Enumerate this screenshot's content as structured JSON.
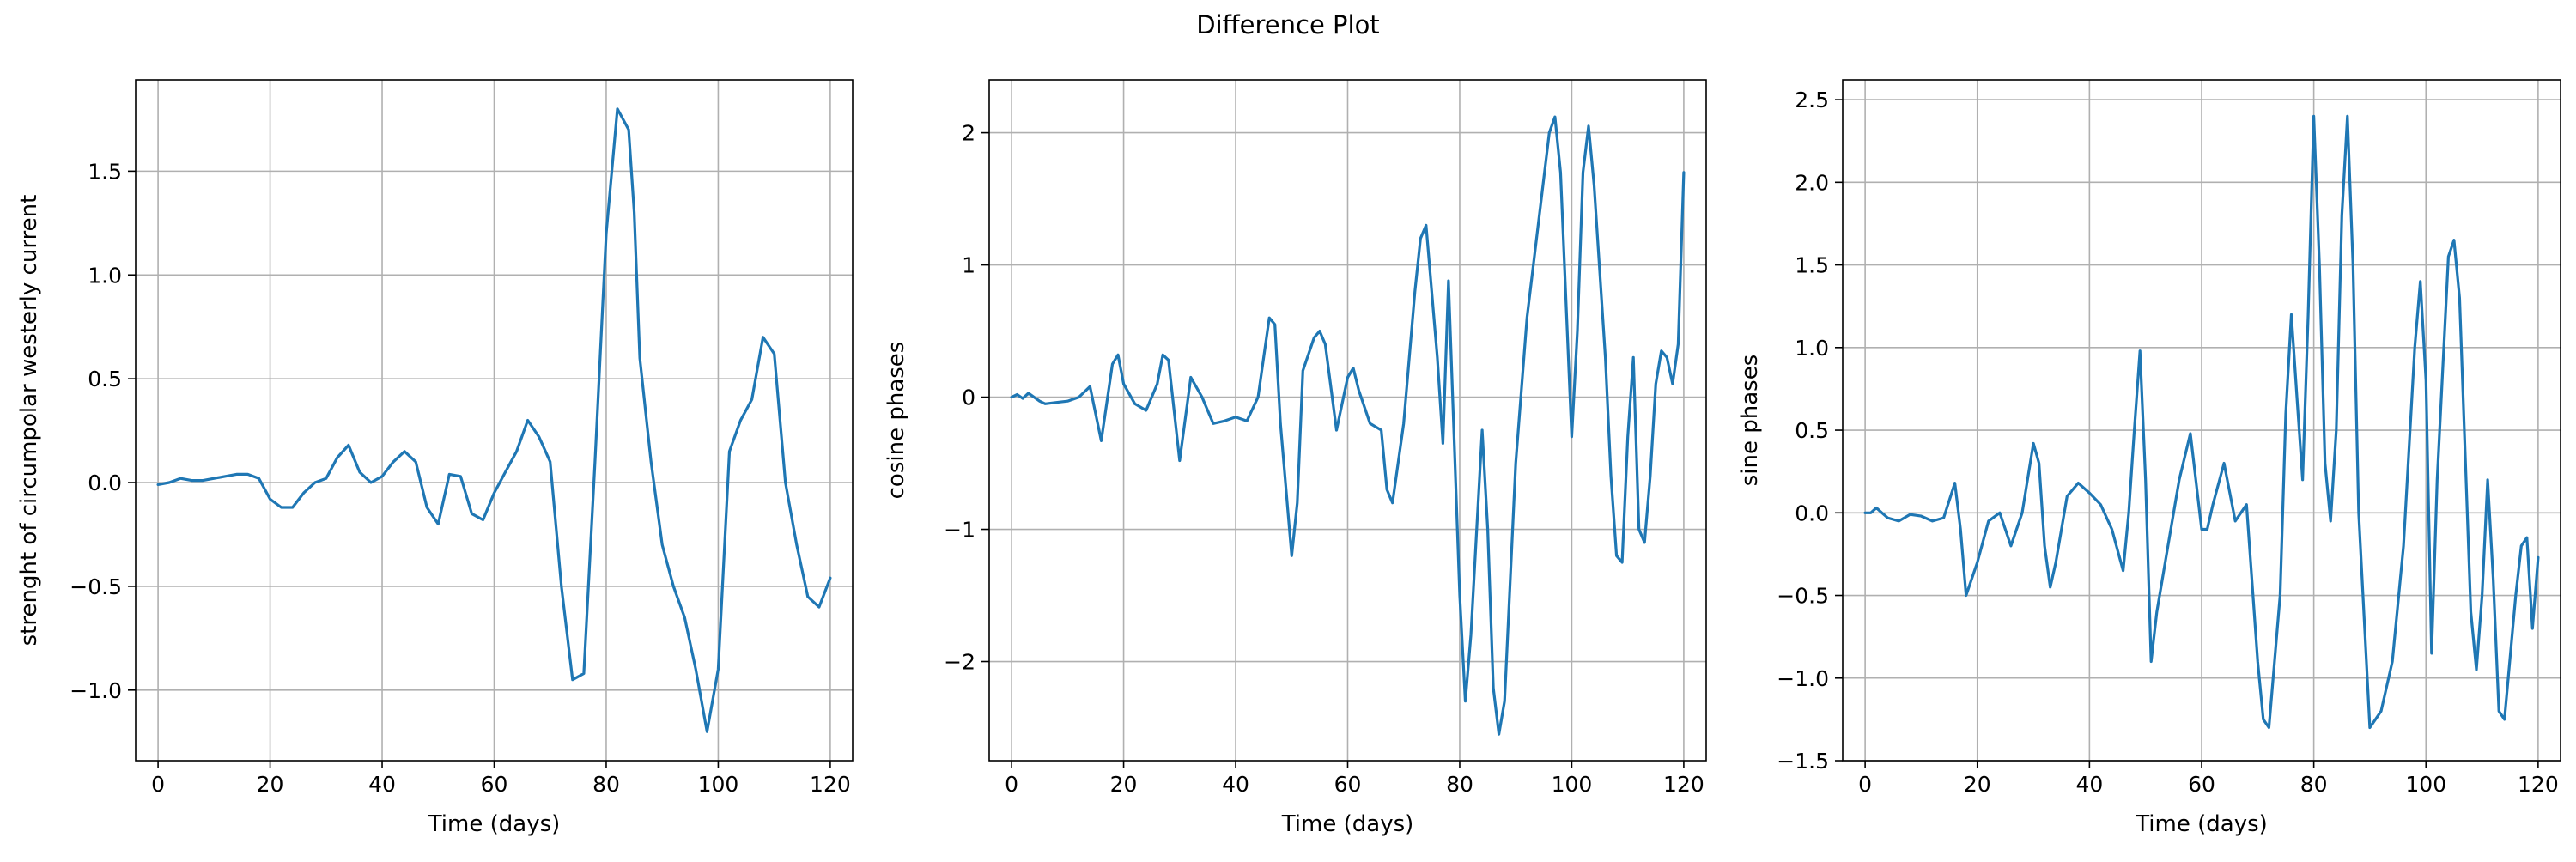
{
  "figure": {
    "title": "Difference Plot"
  },
  "chart_data": [
    {
      "type": "line",
      "title": "",
      "xlabel": "Time (days)",
      "ylabel": "strenght of circumpolar westerly current",
      "xlim": [
        -4,
        124
      ],
      "ylim": [
        -1.34,
        1.94
      ],
      "xticks": [
        0,
        20,
        40,
        60,
        80,
        100,
        120
      ],
      "yticks": [
        -1.0,
        -0.5,
        0.0,
        0.5,
        1.0,
        1.5
      ],
      "ytick_labels": [
        "−1.0",
        "−0.5",
        "0.0",
        "0.5",
        "1.0",
        "1.5"
      ],
      "grid": true,
      "line_color": "#1f77b4",
      "x": [
        0,
        2,
        4,
        6,
        8,
        10,
        12,
        14,
        16,
        18,
        20,
        22,
        24,
        26,
        28,
        30,
        32,
        34,
        36,
        38,
        40,
        42,
        44,
        46,
        48,
        50,
        52,
        54,
        56,
        58,
        60,
        62,
        64,
        66,
        68,
        70,
        72,
        74,
        76,
        78,
        80,
        82,
        84,
        85,
        86,
        88,
        90,
        92,
        94,
        96,
        98,
        100,
        102,
        104,
        106,
        108,
        110,
        112,
        114,
        116,
        118,
        120
      ],
      "y": [
        -0.01,
        0.0,
        0.02,
        0.01,
        0.01,
        0.02,
        0.03,
        0.04,
        0.04,
        0.02,
        -0.08,
        -0.12,
        -0.12,
        -0.05,
        0.0,
        0.02,
        0.12,
        0.18,
        0.05,
        0.0,
        0.03,
        0.1,
        0.15,
        0.1,
        -0.12,
        -0.2,
        0.04,
        0.03,
        -0.15,
        -0.18,
        -0.05,
        0.05,
        0.15,
        0.3,
        0.22,
        0.1,
        -0.5,
        -0.95,
        -0.92,
        0.1,
        1.2,
        1.8,
        1.7,
        1.3,
        0.6,
        0.1,
        -0.3,
        -0.5,
        -0.65,
        -0.9,
        -1.2,
        -0.9,
        0.15,
        0.3,
        0.4,
        0.7,
        0.62,
        0.0,
        -0.3,
        -0.55,
        -0.6,
        -0.46
      ]
    },
    {
      "type": "line",
      "title": "",
      "xlabel": "Time (days)",
      "ylabel": "cosine phases",
      "xlim": [
        -4,
        124
      ],
      "ylim": [
        -2.75,
        2.4
      ],
      "xticks": [
        0,
        20,
        40,
        60,
        80,
        100,
        120
      ],
      "yticks": [
        -2,
        -1,
        0,
        1,
        2
      ],
      "ytick_labels": [
        "−2",
        "−1",
        "0",
        "1",
        "2"
      ],
      "grid": true,
      "line_color": "#1f77b4",
      "x": [
        0,
        1,
        2,
        3,
        4,
        5,
        6,
        8,
        10,
        12,
        14,
        16,
        18,
        19,
        20,
        22,
        24,
        26,
        27,
        28,
        30,
        32,
        34,
        36,
        38,
        40,
        42,
        44,
        46,
        47,
        48,
        50,
        51,
        52,
        54,
        55,
        56,
        58,
        60,
        61,
        62,
        64,
        66,
        67,
        68,
        70,
        72,
        73,
        74,
        76,
        77,
        78,
        80,
        81,
        82,
        84,
        85,
        86,
        87,
        88,
        90,
        92,
        94,
        96,
        97,
        98,
        100,
        101,
        102,
        103,
        104,
        106,
        107,
        108,
        109,
        110,
        111,
        112,
        113,
        114,
        115,
        116,
        117,
        118,
        119,
        120
      ],
      "y": [
        0.0,
        0.02,
        -0.01,
        0.03,
        0.0,
        -0.03,
        -0.05,
        -0.04,
        -0.03,
        0.0,
        0.08,
        -0.33,
        0.25,
        0.32,
        0.1,
        -0.05,
        -0.1,
        0.1,
        0.32,
        0.28,
        -0.48,
        0.15,
        0.0,
        -0.2,
        -0.18,
        -0.15,
        -0.18,
        0.0,
        0.6,
        0.55,
        -0.2,
        -1.2,
        -0.8,
        0.2,
        0.45,
        0.5,
        0.4,
        -0.25,
        0.15,
        0.22,
        0.05,
        -0.2,
        -0.25,
        -0.7,
        -0.8,
        -0.2,
        0.8,
        1.2,
        1.3,
        0.3,
        -0.35,
        0.88,
        -1.5,
        -2.3,
        -1.8,
        -0.25,
        -1.0,
        -2.2,
        -2.55,
        -2.3,
        -0.5,
        0.6,
        1.3,
        2.0,
        2.12,
        1.7,
        -0.3,
        0.5,
        1.7,
        2.05,
        1.6,
        0.3,
        -0.6,
        -1.2,
        -1.25,
        -0.3,
        0.3,
        -1.0,
        -1.1,
        -0.6,
        0.1,
        0.35,
        0.3,
        0.1,
        0.4,
        1.7
      ]
    },
    {
      "type": "line",
      "title": "",
      "xlabel": "Time (days)",
      "ylabel": "sine phases",
      "xlim": [
        -4,
        124
      ],
      "ylim": [
        -1.5,
        2.62
      ],
      "xticks": [
        0,
        20,
        40,
        60,
        80,
        100,
        120
      ],
      "yticks": [
        -1.5,
        -1.0,
        -0.5,
        0.0,
        0.5,
        1.0,
        1.5,
        2.0,
        2.5
      ],
      "ytick_labels": [
        "−1.5",
        "−1.0",
        "−0.5",
        "0.0",
        "0.5",
        "1.0",
        "1.5",
        "2.0",
        "2.5"
      ],
      "grid": true,
      "line_color": "#1f77b4",
      "x": [
        0,
        1,
        2,
        3,
        4,
        6,
        8,
        10,
        12,
        14,
        16,
        17,
        18,
        20,
        22,
        24,
        26,
        28,
        30,
        31,
        32,
        33,
        34,
        36,
        38,
        40,
        42,
        44,
        46,
        47,
        48,
        49,
        50,
        51,
        52,
        54,
        56,
        58,
        60,
        61,
        62,
        64,
        66,
        67,
        68,
        70,
        71,
        72,
        74,
        75,
        76,
        77,
        78,
        79,
        80,
        81,
        82,
        83,
        84,
        85,
        86,
        87,
        88,
        90,
        92,
        94,
        96,
        98,
        99,
        100,
        101,
        102,
        104,
        105,
        106,
        108,
        109,
        110,
        111,
        112,
        113,
        114,
        116,
        117,
        118,
        119,
        120
      ],
      "y": [
        0.0,
        0.0,
        0.03,
        0.0,
        -0.03,
        -0.05,
        -0.01,
        -0.02,
        -0.05,
        -0.03,
        0.18,
        -0.1,
        -0.5,
        -0.3,
        -0.05,
        0.0,
        -0.2,
        0.0,
        0.42,
        0.3,
        -0.2,
        -0.45,
        -0.3,
        0.1,
        0.18,
        0.12,
        0.05,
        -0.1,
        -0.35,
        0.0,
        0.5,
        0.98,
        0.2,
        -0.9,
        -0.6,
        -0.2,
        0.2,
        0.48,
        -0.1,
        -0.1,
        0.05,
        0.3,
        -0.05,
        0.0,
        0.05,
        -0.9,
        -1.25,
        -1.3,
        -0.5,
        0.6,
        1.2,
        0.7,
        0.2,
        1.2,
        2.4,
        1.5,
        0.3,
        -0.05,
        0.5,
        1.8,
        2.4,
        1.5,
        0.0,
        -1.3,
        -1.2,
        -0.9,
        -0.2,
        1.0,
        1.4,
        0.8,
        -0.85,
        0.2,
        1.55,
        1.65,
        1.3,
        -0.6,
        -0.95,
        -0.5,
        0.2,
        -0.4,
        -1.2,
        -1.25,
        -0.5,
        -0.2,
        -0.15,
        -0.7,
        -0.27
      ]
    }
  ]
}
